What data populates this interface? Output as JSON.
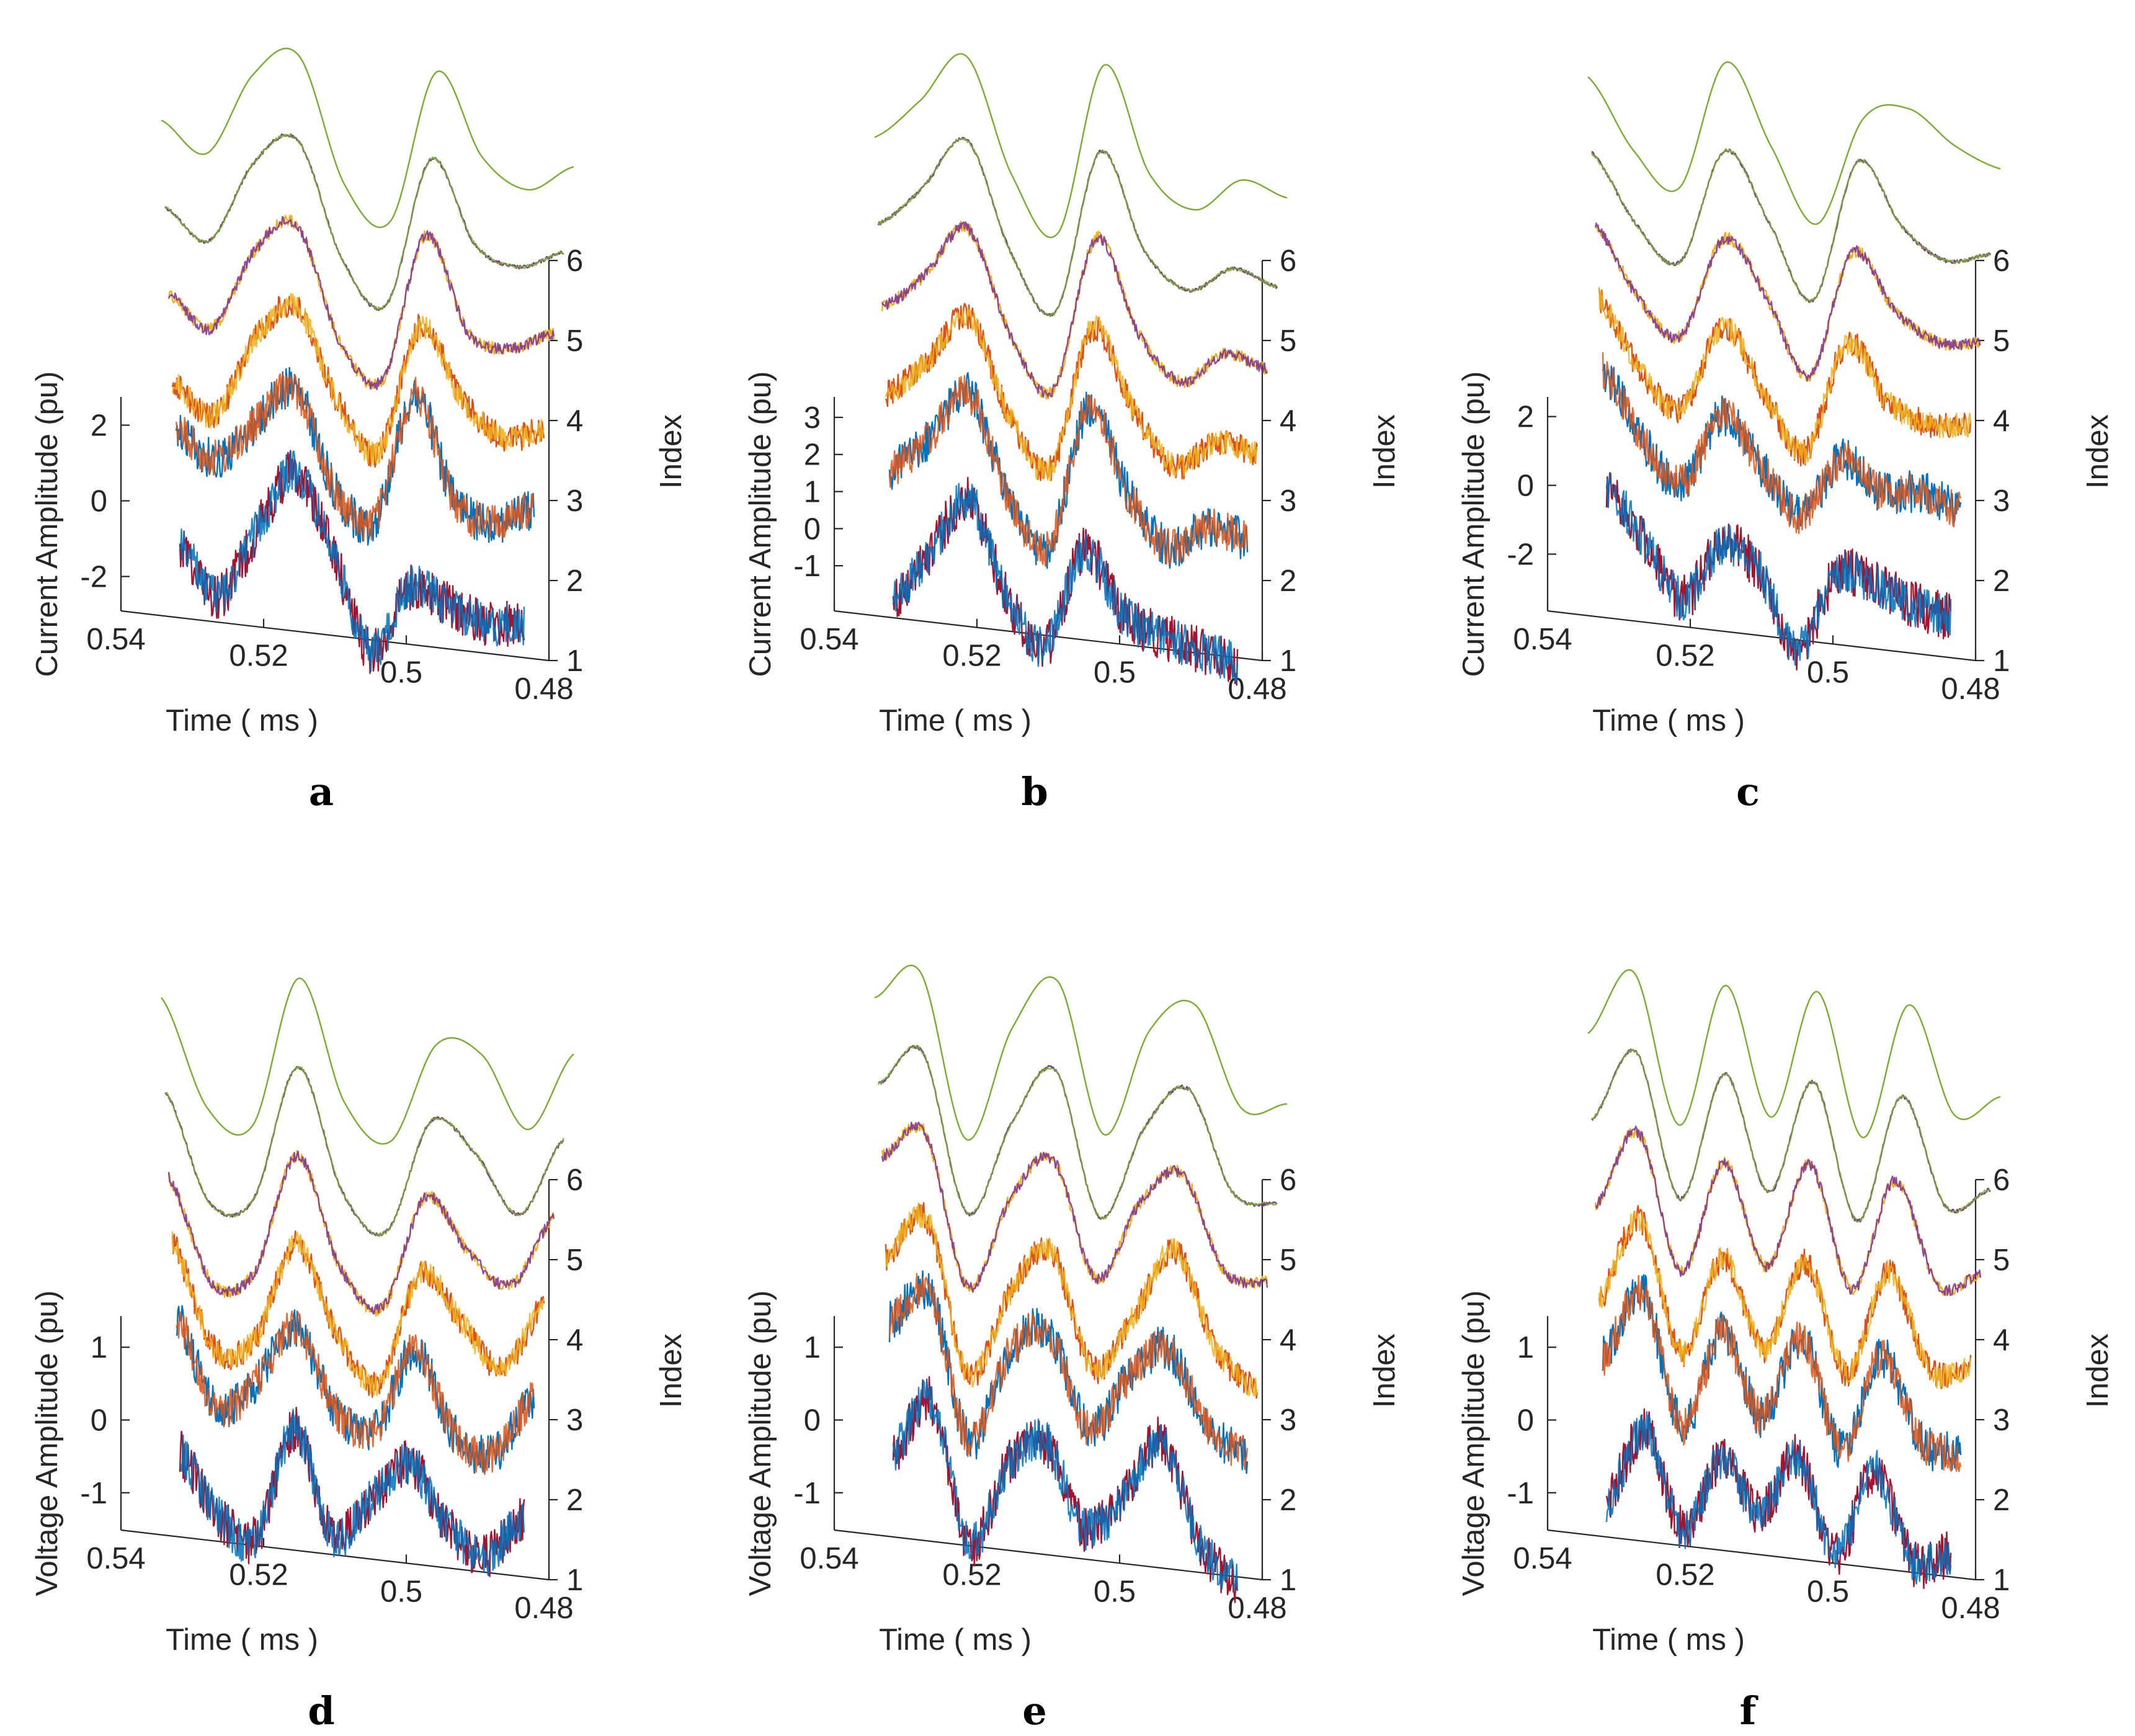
{
  "figure": {
    "xlabel": "Time ( ms )",
    "ylabel_current": "Current Amplitude (pu)",
    "ylabel_voltage": "Voltage Amplitude (pu)",
    "zlabel": "Index",
    "x_ticks": [
      "0.54",
      "0.52",
      "0.5",
      "0.48"
    ],
    "index_ticks": [
      "1",
      "2",
      "3",
      "4",
      "5",
      "6"
    ],
    "colors": {
      "blue": "#0072BD",
      "dark_red": "#A2142F",
      "orange": "#D95319",
      "yellow": "#EDB120",
      "purple": "#7E2F8E",
      "green": "#77AC30",
      "axis": "#262626"
    }
  },
  "chart_data": [
    {
      "panel": "a",
      "type": "line",
      "quantity": "current",
      "xlabel": "Time ( ms )",
      "ylabel": "Current Amplitude (pu)",
      "zlabel": "Index",
      "xlim": [
        0.54,
        0.48
      ],
      "ylim": [
        -2.5,
        2.5
      ],
      "zlim": [
        1,
        6
      ],
      "y_ticks": [
        "-2",
        "0",
        "2"
      ],
      "x": [
        0.53,
        0.525,
        0.52,
        0.515,
        0.51,
        0.505,
        0.5,
        0.495,
        0.49,
        0.485
      ],
      "series": [
        {
          "index": 1,
          "colors": [
            "#A2142F",
            "#0072BD"
          ],
          "values": [
            -0.3,
            -1.5,
            0.4,
            2.2,
            0.2,
            -2.3,
            -0.4,
            -0.7,
            -1.0,
            -0.9
          ]
        },
        {
          "index": 2,
          "colors": [
            "#0072BD",
            "#D95319"
          ],
          "values": [
            0.8,
            0.2,
            1.3,
            2.4,
            -0.2,
            -0.8,
            2.7,
            0.0,
            -0.4,
            0.1
          ]
        },
        {
          "index": 3,
          "colors": [
            "#D95319",
            "#EDB120"
          ],
          "values": [
            0.0,
            -0.8,
            1.4,
            2.4,
            0.0,
            -1.2,
            2.3,
            0.5,
            -0.4,
            -0.1
          ]
        },
        {
          "index": 4,
          "colors": [
            "#EDB120",
            "#7E2F8E"
          ],
          "values": [
            0.2,
            -0.6,
            1.6,
            2.4,
            -0.6,
            -1.5,
            2.5,
            0.0,
            -0.3,
            0.2
          ]
        },
        {
          "index": 5,
          "colors": [
            "#7E2F8E",
            "#77AC30"
          ],
          "values": [
            0.4,
            -0.4,
            1.8,
            2.5,
            -0.6,
            -1.7,
            2.3,
            0.1,
            -0.4,
            0.1
          ]
        },
        {
          "index": 6,
          "colors": [
            "#77AC30"
          ],
          "values": [
            0.6,
            -0.2,
            2.0,
            2.6,
            -0.8,
            -1.7,
            2.4,
            0.2,
            -0.6,
            0.1
          ]
        }
      ]
    },
    {
      "panel": "b",
      "type": "line",
      "quantity": "current",
      "xlabel": "Time ( ms )",
      "ylabel": "Current Amplitude (pu)",
      "zlabel": "Index",
      "xlim": [
        0.54,
        0.48
      ],
      "ylim": [
        -1.8,
        3.3
      ],
      "zlim": [
        1,
        6
      ],
      "y_ticks": [
        "-1",
        "0",
        "1",
        "2",
        "3"
      ],
      "x": [
        0.53,
        0.525,
        0.52,
        0.515,
        0.51,
        0.505,
        0.5,
        0.495,
        0.49,
        0.485
      ],
      "series": [
        {
          "index": 1,
          "colors": [
            "#A2142F",
            "#0072BD"
          ],
          "values": [
            -1.0,
            0.5,
            2.0,
            -0.5,
            -1.6,
            1.2,
            -0.4,
            -0.8,
            -1.0,
            -1.2
          ]
        },
        {
          "index": 2,
          "colors": [
            "#0072BD",
            "#D95319"
          ],
          "values": [
            0.5,
            1.5,
            2.9,
            0.2,
            -1.0,
            3.0,
            0.8,
            -0.5,
            0.2,
            0.0
          ]
        },
        {
          "index": 3,
          "colors": [
            "#D95319",
            "#EDB120"
          ],
          "values": [
            0.4,
            1.4,
            2.8,
            0.2,
            -1.1,
            2.9,
            0.8,
            -0.6,
            0.2,
            0.0
          ]
        },
        {
          "index": 4,
          "colors": [
            "#EDB120",
            "#7E2F8E"
          ],
          "values": [
            0.6,
            1.6,
            3.0,
            0.2,
            -1.2,
            3.1,
            0.6,
            -0.6,
            0.3,
            0.0
          ]
        },
        {
          "index": 5,
          "colors": [
            "#7E2F8E",
            "#77AC30"
          ],
          "values": [
            0.7,
            1.8,
            3.2,
            0.2,
            -1.3,
            3.2,
            0.6,
            -0.4,
            0.3,
            -0.1
          ]
        },
        {
          "index": 6,
          "colors": [
            "#77AC30"
          ],
          "values": [
            0.9,
            2.0,
            3.3,
            0.1,
            -1.4,
            3.3,
            0.4,
            -0.5,
            0.4,
            0.0
          ]
        }
      ]
    },
    {
      "panel": "c",
      "type": "line",
      "quantity": "current",
      "xlabel": "Time ( ms )",
      "ylabel": "Current Amplitude (pu)",
      "zlabel": "Index",
      "xlim": [
        0.54,
        0.48
      ],
      "ylim": [
        -3.2,
        2.3
      ],
      "zlim": [
        1,
        6
      ],
      "y_ticks": [
        "-2",
        "0",
        "2"
      ],
      "x": [
        0.53,
        0.525,
        0.52,
        0.515,
        0.51,
        0.505,
        0.5,
        0.495,
        0.49,
        0.485
      ],
      "series": [
        {
          "index": 1,
          "colors": [
            "#A2142F",
            "#0072BD"
          ],
          "values": [
            1.0,
            -0.5,
            -2.0,
            -0.2,
            -0.8,
            -2.9,
            -0.5,
            -0.6,
            -1.0,
            -1.2
          ]
        },
        {
          "index": 2,
          "colors": [
            "#0072BD",
            "#D95319"
          ],
          "values": [
            2.2,
            0.3,
            -0.8,
            1.4,
            0.0,
            -1.2,
            0.6,
            -0.2,
            0.0,
            -0.4
          ]
        },
        {
          "index": 3,
          "colors": [
            "#D95319",
            "#EDB120"
          ],
          "values": [
            2.0,
            0.0,
            -1.0,
            1.6,
            -0.2,
            -1.8,
            1.6,
            0.0,
            -0.5,
            -0.4
          ]
        },
        {
          "index": 4,
          "colors": [
            "#EDB120",
            "#7E2F8E"
          ],
          "values": [
            1.8,
            -0.2,
            -1.2,
            1.8,
            0.2,
            -2.0,
            1.8,
            0.2,
            -0.6,
            -0.5
          ]
        },
        {
          "index": 5,
          "colors": [
            "#7E2F8E",
            "#77AC30"
          ],
          "values": [
            1.6,
            -0.4,
            -1.4,
            2.0,
            0.0,
            -2.2,
            2.0,
            0.2,
            -0.7,
            -0.4
          ]
        },
        {
          "index": 6,
          "colors": [
            "#77AC30"
          ],
          "values": [
            1.5,
            -0.6,
            -1.6,
            2.2,
            -0.2,
            -2.4,
            0.8,
            1.2,
            0.2,
            -0.4
          ]
        }
      ]
    },
    {
      "panel": "d",
      "type": "line",
      "quantity": "voltage",
      "xlabel": "Time ( ms )",
      "ylabel": "Voltage Amplitude (pu)",
      "zlabel": "Index",
      "xlim": [
        0.54,
        0.48
      ],
      "ylim": [
        -1.3,
        1.3
      ],
      "zlim": [
        1,
        6
      ],
      "y_ticks": [
        "-1",
        "0",
        "1"
      ],
      "x": [
        0.53,
        0.525,
        0.52,
        0.515,
        0.51,
        0.505,
        0.5,
        0.495,
        0.49,
        0.485
      ],
      "series": [
        {
          "index": 1,
          "colors": [
            "#A2142F",
            "#0072BD"
          ],
          "values": [
            0.0,
            -0.8,
            -1.0,
            0.6,
            -0.8,
            -0.2,
            0.4,
            -0.4,
            -0.7,
            -0.1
          ]
        },
        {
          "index": 2,
          "colors": [
            "#0072BD",
            "#D95319"
          ],
          "values": [
            0.9,
            -0.3,
            0.1,
            1.0,
            -0.1,
            -0.3,
            0.9,
            -0.2,
            -0.4,
            0.5
          ]
        },
        {
          "index": 3,
          "colors": [
            "#D95319",
            "#EDB120"
          ],
          "values": [
            0.8,
            -0.6,
            -0.4,
            1.0,
            -0.2,
            -0.8,
            0.8,
            0.2,
            -0.4,
            0.6
          ]
        },
        {
          "index": 4,
          "colors": [
            "#EDB120",
            "#7E2F8E"
          ],
          "values": [
            0.6,
            -0.8,
            -0.6,
            1.1,
            -0.4,
            -0.9,
            0.7,
            0.0,
            -0.4,
            0.6
          ]
        },
        {
          "index": 5,
          "colors": [
            "#7E2F8E",
            "#77AC30"
          ],
          "values": [
            0.7,
            -0.8,
            -0.7,
            1.2,
            -0.5,
            -1.0,
            0.6,
            0.2,
            -0.6,
            0.5
          ]
        },
        {
          "index": 6,
          "colors": [
            "#77AC30"
          ],
          "values": [
            0.9,
            -0.6,
            -0.8,
            1.3,
            -0.4,
            -0.9,
            0.5,
            0.4,
            -0.6,
            0.5
          ]
        }
      ]
    },
    {
      "panel": "e",
      "type": "line",
      "quantity": "voltage",
      "xlabel": "Time ( ms )",
      "ylabel": "Voltage Amplitude (pu)",
      "zlabel": "Index",
      "xlim": [
        0.54,
        0.48
      ],
      "ylim": [
        -1.3,
        1.3
      ],
      "zlim": [
        1,
        6
      ],
      "y_ticks": [
        "-1",
        "0",
        "1"
      ],
      "x": [
        0.53,
        0.525,
        0.52,
        0.515,
        0.51,
        0.505,
        0.5,
        0.495,
        0.49,
        0.485
      ],
      "series": [
        {
          "index": 1,
          "colors": [
            "#A2142F",
            "#0072BD"
          ],
          "values": [
            0.0,
            0.8,
            -1.1,
            0.1,
            0.5,
            -0.6,
            -0.1,
            0.8,
            -0.5,
            -1.0
          ]
        },
        {
          "index": 2,
          "colors": [
            "#0072BD",
            "#D95319"
          ],
          "values": [
            0.8,
            1.3,
            -0.7,
            0.6,
            1.0,
            -0.3,
            0.5,
            1.0,
            0.0,
            -0.3
          ]
        },
        {
          "index": 3,
          "colors": [
            "#D95319",
            "#EDB120"
          ],
          "values": [
            0.6,
            1.2,
            -0.9,
            0.3,
            1.0,
            -0.6,
            0.2,
            1.2,
            -0.1,
            -0.6
          ]
        },
        {
          "index": 4,
          "colors": [
            "#EDB120",
            "#7E2F8E"
          ],
          "values": [
            0.9,
            1.3,
            -0.8,
            0.5,
            1.1,
            -0.5,
            0.6,
            1.1,
            -0.2,
            -0.3
          ]
        },
        {
          "index": 5,
          "colors": [
            "#7E2F8E",
            "#77AC30"
          ],
          "values": [
            0.8,
            1.3,
            -0.9,
            0.4,
            1.2,
            -0.8,
            0.5,
            1.1,
            -0.3,
            -0.4
          ]
        },
        {
          "index": 6,
          "colors": [
            "#77AC30"
          ],
          "values": [
            0.9,
            1.3,
            -1.0,
            0.6,
            1.3,
            -0.8,
            0.7,
            1.1,
            -0.3,
            -0.2
          ]
        }
      ]
    },
    {
      "panel": "f",
      "type": "line",
      "quantity": "voltage",
      "xlabel": "Time ( ms )",
      "ylabel": "Voltage Amplitude (pu)",
      "zlabel": "Index",
      "xlim": [
        0.54,
        0.48
      ],
      "ylim": [
        -1.3,
        1.3
      ],
      "zlim": [
        1,
        6
      ],
      "y_ticks": [
        "-1",
        "0",
        "1"
      ],
      "x": [
        0.53,
        0.525,
        0.52,
        0.515,
        0.51,
        0.505,
        0.5,
        0.495,
        0.49,
        0.485
      ],
      "series": [
        {
          "index": 1,
          "colors": [
            "#A2142F",
            "#0072BD"
          ],
          "values": [
            -0.7,
            0.4,
            -0.9,
            0.2,
            -0.5,
            0.4,
            -0.9,
            0.4,
            -0.8,
            -0.6
          ]
        },
        {
          "index": 2,
          "colors": [
            "#0072BD",
            "#D95319"
          ],
          "values": [
            0.3,
            1.3,
            -0.5,
            0.9,
            -0.2,
            1.0,
            -0.5,
            0.9,
            -0.2,
            -0.3
          ]
        },
        {
          "index": 3,
          "colors": [
            "#D95319",
            "#EDB120"
          ],
          "values": [
            0.0,
            1.2,
            -0.6,
            0.8,
            -0.4,
            0.9,
            -0.6,
            0.9,
            -0.4,
            -0.3
          ]
        },
        {
          "index": 4,
          "colors": [
            "#EDB120",
            "#7E2F8E"
          ],
          "values": [
            0.2,
            1.3,
            -0.6,
            1.0,
            -0.4,
            1.1,
            -0.6,
            1.0,
            -0.4,
            -0.2
          ]
        },
        {
          "index": 5,
          "colors": [
            "#7E2F8E",
            "#77AC30"
          ],
          "values": [
            0.3,
            1.3,
            -0.7,
            1.1,
            -0.5,
            1.1,
            -0.8,
            1.0,
            -0.5,
            -0.2
          ]
        },
        {
          "index": 6,
          "colors": [
            "#77AC30"
          ],
          "values": [
            0.4,
            1.3,
            -0.8,
            1.2,
            -0.6,
            1.2,
            -0.8,
            1.1,
            -0.4,
            -0.1
          ]
        }
      ]
    }
  ]
}
